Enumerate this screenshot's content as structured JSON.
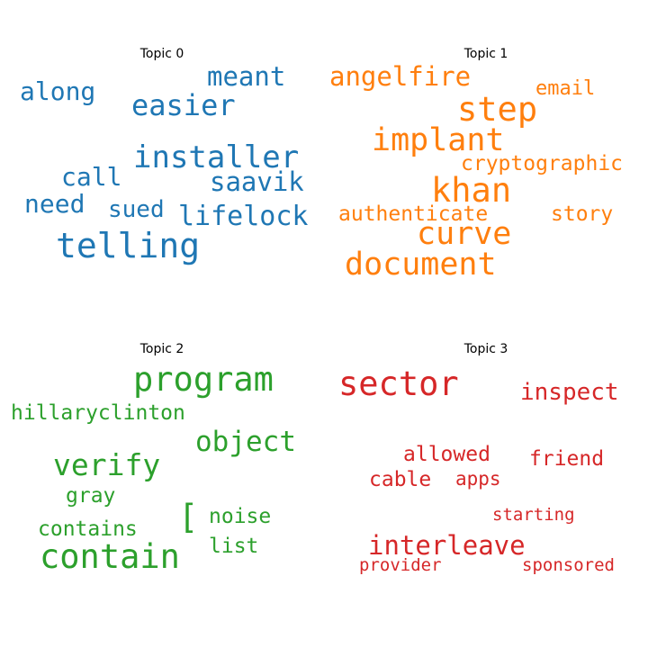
{
  "chart_data": {
    "type": "wordcloud",
    "topics": [
      {
        "title": "Topic 0",
        "color": "#1f77b4",
        "words": [
          "installer",
          "telling",
          "easier",
          "meant",
          "saavik",
          "along",
          "call",
          "lifelock",
          "sued",
          "need"
        ]
      },
      {
        "title": "Topic 1",
        "color": "#ff7f0e",
        "words": [
          "step",
          "implant",
          "khan",
          "curve",
          "document",
          "angelfire",
          "email",
          "cryptographic",
          "authenticate",
          "story"
        ]
      },
      {
        "title": "Topic 2",
        "color": "#2ca02c",
        "words": [
          "program",
          "contain",
          "object",
          "verify",
          "hillaryclinton",
          "gray",
          "contains",
          "[",
          "noise",
          "list"
        ]
      },
      {
        "title": "Topic 3",
        "color": "#d62728",
        "words": [
          "sector",
          "inspect",
          "interleave",
          "allowed",
          "friend",
          "cable",
          "apps",
          "starting",
          "provider",
          "sponsored"
        ]
      }
    ]
  }
}
